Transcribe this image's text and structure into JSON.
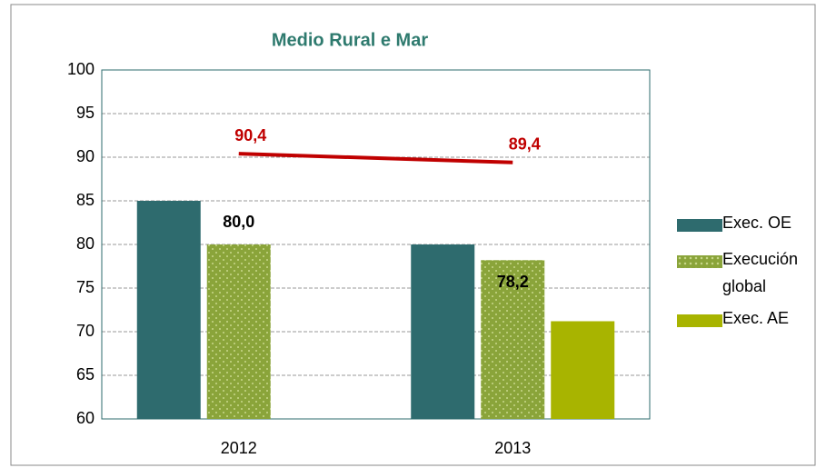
{
  "chart_data": {
    "type": "bar",
    "title": "Medio Rural e Mar",
    "categories": [
      "2012",
      "2013"
    ],
    "series": [
      {
        "name": "Exec. OE",
        "color": "#2e6b6e",
        "values": [
          85,
          80
        ]
      },
      {
        "name": "Execución global",
        "color": "#8aa43a",
        "values": [
          80.0,
          78.2
        ],
        "value_labels": [
          "80,0",
          "78,2"
        ],
        "pattern": "dots"
      },
      {
        "name": "Exec. AE",
        "color": "#a8b400",
        "values": [
          null,
          71.2
        ]
      },
      {
        "type": "line",
        "color": "#c00000",
        "values": [
          90.4,
          89.4
        ],
        "value_labels": [
          "90,4",
          "89,4"
        ]
      }
    ],
    "ylim": [
      60,
      100
    ],
    "yticks": [
      60,
      65,
      70,
      75,
      80,
      85,
      90,
      95,
      100
    ],
    "grid": true,
    "legend": "right"
  }
}
